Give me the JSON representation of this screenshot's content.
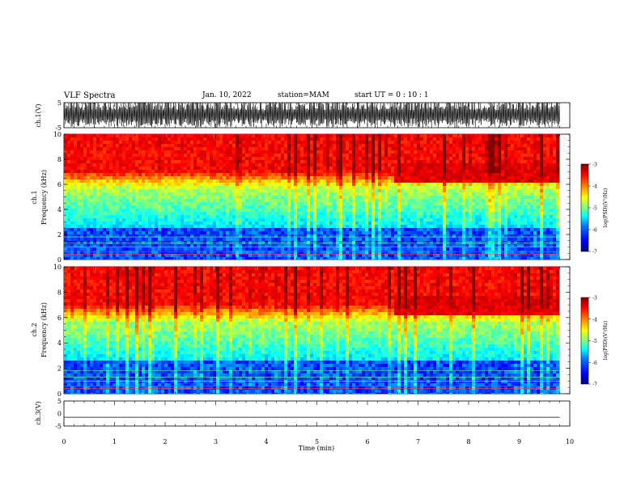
{
  "header": {
    "title": "VLF Spectra",
    "date": "Jan. 10, 2022",
    "station": "station=MAM",
    "start": "start UT =  0 : 10 : 1"
  },
  "chart_data": [
    {
      "type": "line",
      "name": "ch1-waveform",
      "ylabel": "ch.1(V)",
      "ylim": [
        -5,
        5
      ],
      "yticks": [
        "5",
        "-5"
      ],
      "xlim": [
        0,
        10
      ],
      "note_values": "dense impulsive waveform spanning nearly full range"
    },
    {
      "type": "heatmap",
      "name": "ch1-spectrogram",
      "ylabel_top": "ch.1",
      "ylabel": "Frequency (kHz)",
      "ylim": [
        0,
        10
      ],
      "yticks": [
        "0",
        "2",
        "4",
        "6",
        "8",
        "10"
      ],
      "xlim": [
        0,
        9.8
      ],
      "colorbar": {
        "label": "log(PSD)(V²/Hz)",
        "range": [
          -7,
          -3
        ],
        "ticks": [
          "-3",
          "-4",
          "-5",
          "-6",
          "-7"
        ]
      }
    },
    {
      "type": "heatmap",
      "name": "ch2-spectrogram",
      "ylabel_top": "ch.2",
      "ylabel": "Frequency (kHz)",
      "ylim": [
        0,
        10
      ],
      "yticks": [
        "0",
        "2",
        "4",
        "6",
        "8",
        "10"
      ],
      "xlim": [
        0,
        9.8
      ],
      "colorbar": {
        "label": "log(PSD)(V²/Hz)",
        "range": [
          -7,
          -3
        ],
        "ticks": [
          "-3",
          "-4",
          "-5",
          "-6",
          "-7"
        ]
      }
    },
    {
      "type": "line",
      "name": "ch3-waveform",
      "ylabel": "ch.3(V)",
      "ylim": [
        -5,
        5
      ],
      "yticks": [
        "5",
        "0",
        "-5"
      ],
      "xlim": [
        0,
        10
      ],
      "value": -1.5
    }
  ],
  "xaxis": {
    "label": "Time (min)",
    "ticks": [
      "0",
      "1",
      "2",
      "3",
      "4",
      "5",
      "6",
      "7",
      "8",
      "9",
      "10"
    ]
  },
  "colormap": [
    "#00007f",
    "#0000ff",
    "#0080ff",
    "#00ffff",
    "#80ff80",
    "#ffff00",
    "#ff8000",
    "#ff0000",
    "#7f0000"
  ]
}
